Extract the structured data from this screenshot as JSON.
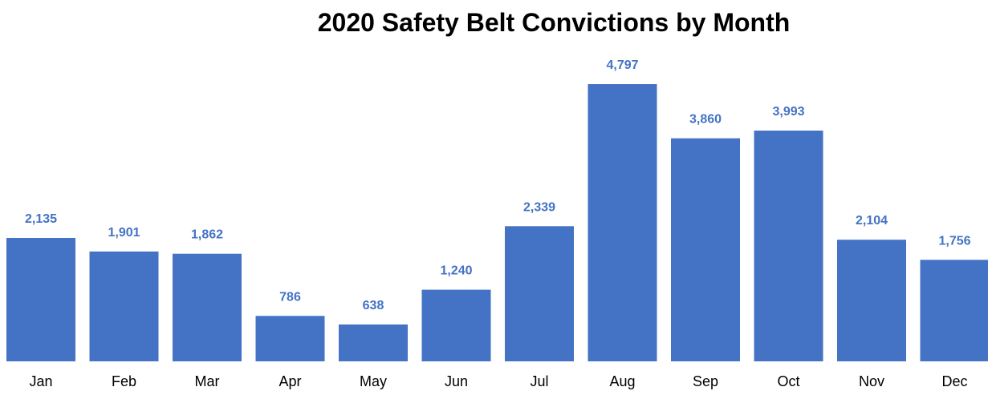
{
  "chart_data": {
    "type": "bar",
    "title": "2020 Safety Belt Convictions by Month",
    "xlabel": "",
    "ylabel": "",
    "categories": [
      "Jan",
      "Feb",
      "Mar",
      "Apr",
      "May",
      "Jun",
      "Jul",
      "Aug",
      "Sep",
      "Oct",
      "Nov",
      "Dec"
    ],
    "values": [
      2135,
      1901,
      1862,
      786,
      638,
      1240,
      2339,
      4797,
      3860,
      3993,
      2104,
      1756
    ],
    "value_labels": [
      "2,135",
      "1,901",
      "1,862",
      "786",
      "638",
      "1,240",
      "2,339",
      "4,797",
      "3,860",
      "3,993",
      "2,104",
      "1,756"
    ],
    "ylim": [
      0,
      4797
    ],
    "grid": false,
    "legend": "none",
    "bar_color": "#4472C4",
    "label_color": "#4472C4"
  }
}
